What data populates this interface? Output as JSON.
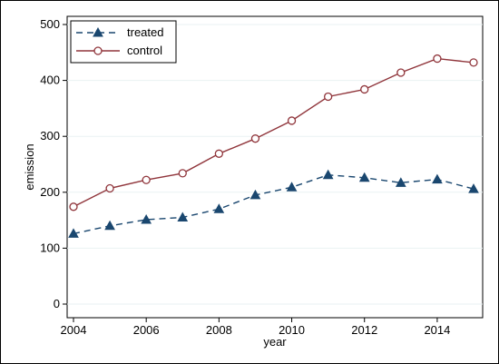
{
  "chart_data": {
    "type": "line",
    "xlabel": "year",
    "ylabel": "emission",
    "xlim": [
      2004,
      2015
    ],
    "ylim": [
      0,
      500
    ],
    "x_ticks": [
      "2004",
      "2006",
      "2008",
      "2010",
      "2012",
      "2014"
    ],
    "y_ticks": [
      "0",
      "100",
      "200",
      "300",
      "400",
      "500"
    ],
    "grid": true,
    "legend_position": "top-left",
    "x": [
      2004,
      2005,
      2006,
      2007,
      2008,
      2009,
      2010,
      2011,
      2012,
      2013,
      2014,
      2015
    ],
    "series": [
      {
        "name": "treated",
        "color": "#1a476f",
        "line_style": "dashed",
        "marker": "triangle",
        "values": [
          126,
          140,
          151,
          155,
          170,
          195,
          209,
          231,
          226,
          217,
          223,
          206
        ]
      },
      {
        "name": "control",
        "color": "#90353b",
        "line_style": "solid",
        "marker": "hollow-circle",
        "values": [
          174,
          207,
          222,
          234,
          269,
          296,
          328,
          371,
          384,
          414,
          439,
          432
        ]
      }
    ]
  },
  "colors": {
    "background": "#ffffff",
    "plot_background": "#ffffff",
    "grid": "#eaf2f3",
    "axis": "#000000"
  }
}
